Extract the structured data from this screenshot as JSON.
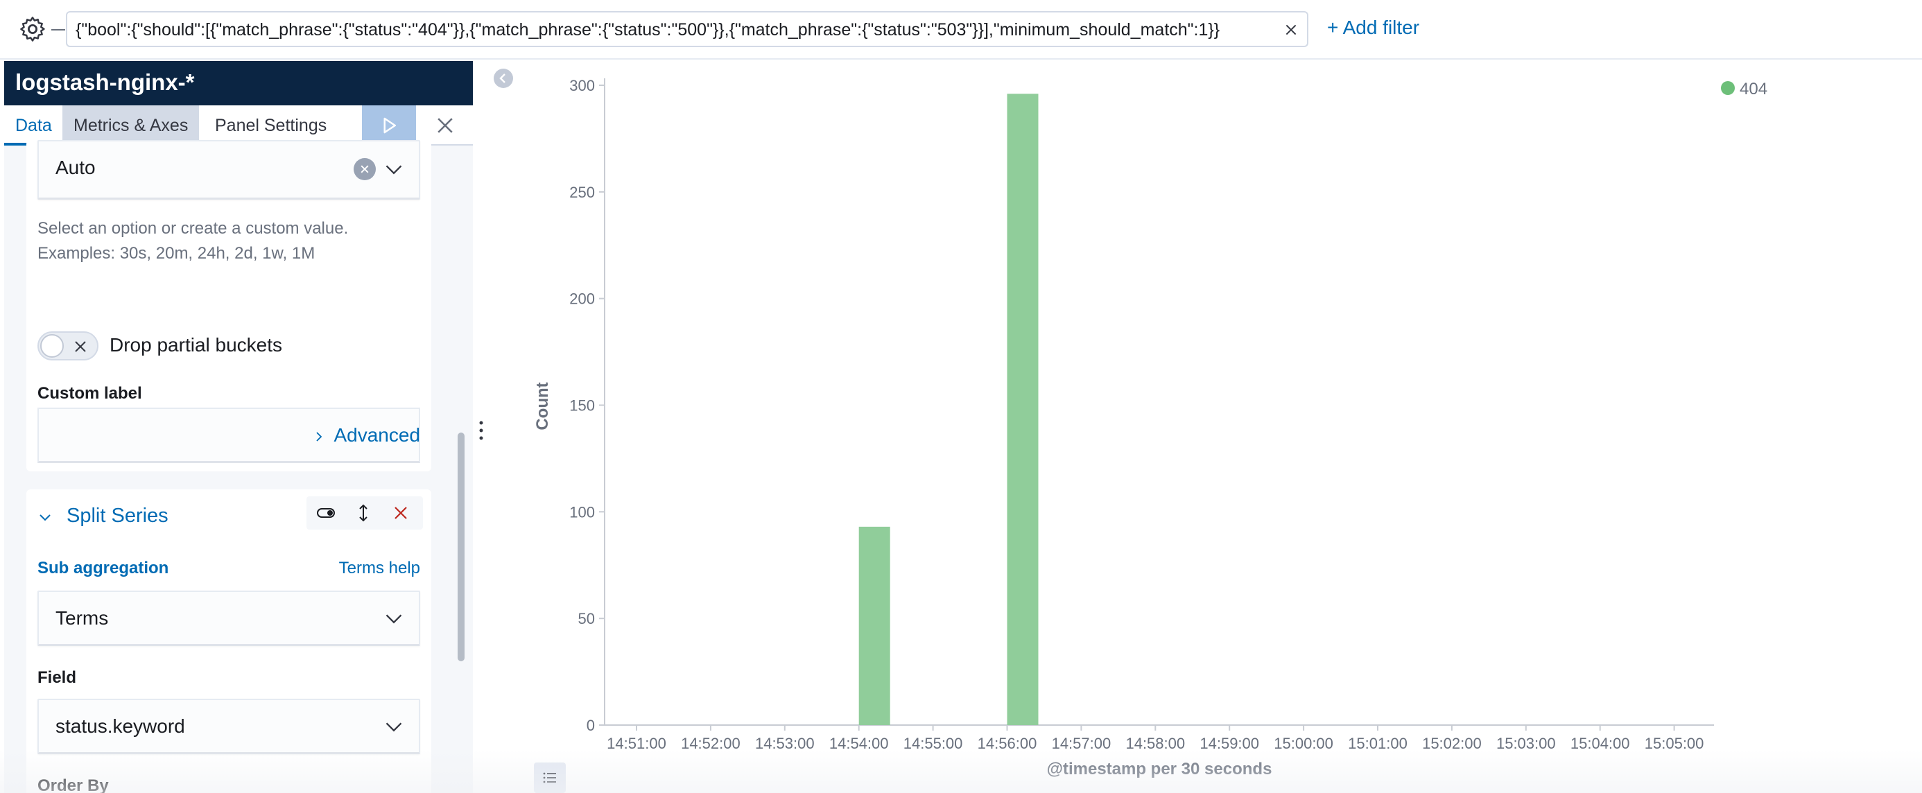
{
  "filter_bar": {
    "query": "{\"bool\":{\"should\":[{\"match_phrase\":{\"status\":\"404\"}},{\"match_phrase\":{\"status\":\"500\"}},{\"match_phrase\":{\"status\":\"503\"}}],\"minimum_should_match\":1}}",
    "add_filter_label": "+ Add filter"
  },
  "editor": {
    "index_pattern": "logstash-nginx-*",
    "tabs": [
      "Data",
      "Metrics & Axes",
      "Panel Settings"
    ],
    "active_tab": "Data",
    "interval": {
      "value": "Auto",
      "help_line1": "Select an option or create a custom value.",
      "help_line2": "Examples: 30s, 20m, 24h, 2d, 1w, 1M"
    },
    "drop_partial_buckets": {
      "label": "Drop partial buckets",
      "enabled": false
    },
    "custom_label": {
      "label": "Custom label",
      "value": ""
    },
    "advanced_label": "Advanced",
    "split_series": {
      "title": "Split Series",
      "sub_aggregation_label": "Sub aggregation",
      "terms_help_label": "Terms help",
      "sub_aggregation_value": "Terms",
      "field_label": "Field",
      "field_value": "status.keyword",
      "order_by_label": "Order By"
    }
  },
  "colors": {
    "bar": "#90cd9a",
    "legend_dot": "#6dbf79",
    "link": "#006bb4",
    "header_bg": "#0b2543",
    "danger": "#bd271e"
  },
  "chart_data": {
    "type": "bar",
    "xlabel": "@timestamp per 30 seconds",
    "ylabel": "Count",
    "ylim": [
      0,
      300
    ],
    "yticks": [
      0,
      50,
      100,
      150,
      200,
      250,
      300
    ],
    "xticks": [
      "14:51:00",
      "14:52:00",
      "14:53:00",
      "14:54:00",
      "14:55:00",
      "14:56:00",
      "14:57:00",
      "14:58:00",
      "14:59:00",
      "15:00:00",
      "15:01:00",
      "15:02:00",
      "15:03:00",
      "15:04:00",
      "15:05:00"
    ],
    "legend_position": "top-right",
    "series": [
      {
        "name": "404",
        "points": [
          {
            "x": "14:54:00",
            "y": 93
          },
          {
            "x": "14:56:00",
            "y": 296
          }
        ]
      }
    ]
  }
}
